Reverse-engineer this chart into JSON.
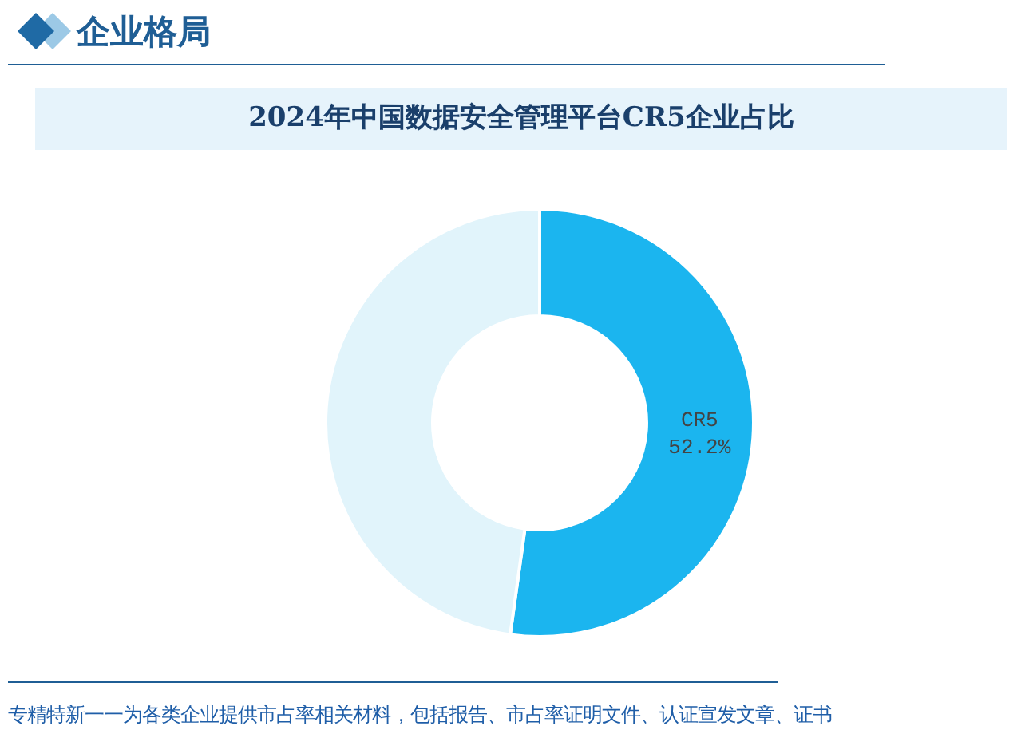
{
  "chart_data": {
    "type": "donut",
    "title": "2024年中国数据安全管理平台CR5企业占比",
    "categories": [
      "CR5",
      null
    ],
    "values": [
      52.2,
      47.8
    ],
    "colors": [
      "#1bb5ef",
      "#e1f4fb"
    ],
    "value_labels": [
      "52.2%",
      null
    ],
    "annotations": [
      "企业格局",
      "专精特新一一为各类企业提供市占率相关材料，包括报告、市占率证明文件、认证宣发文章、证书"
    ]
  }
}
